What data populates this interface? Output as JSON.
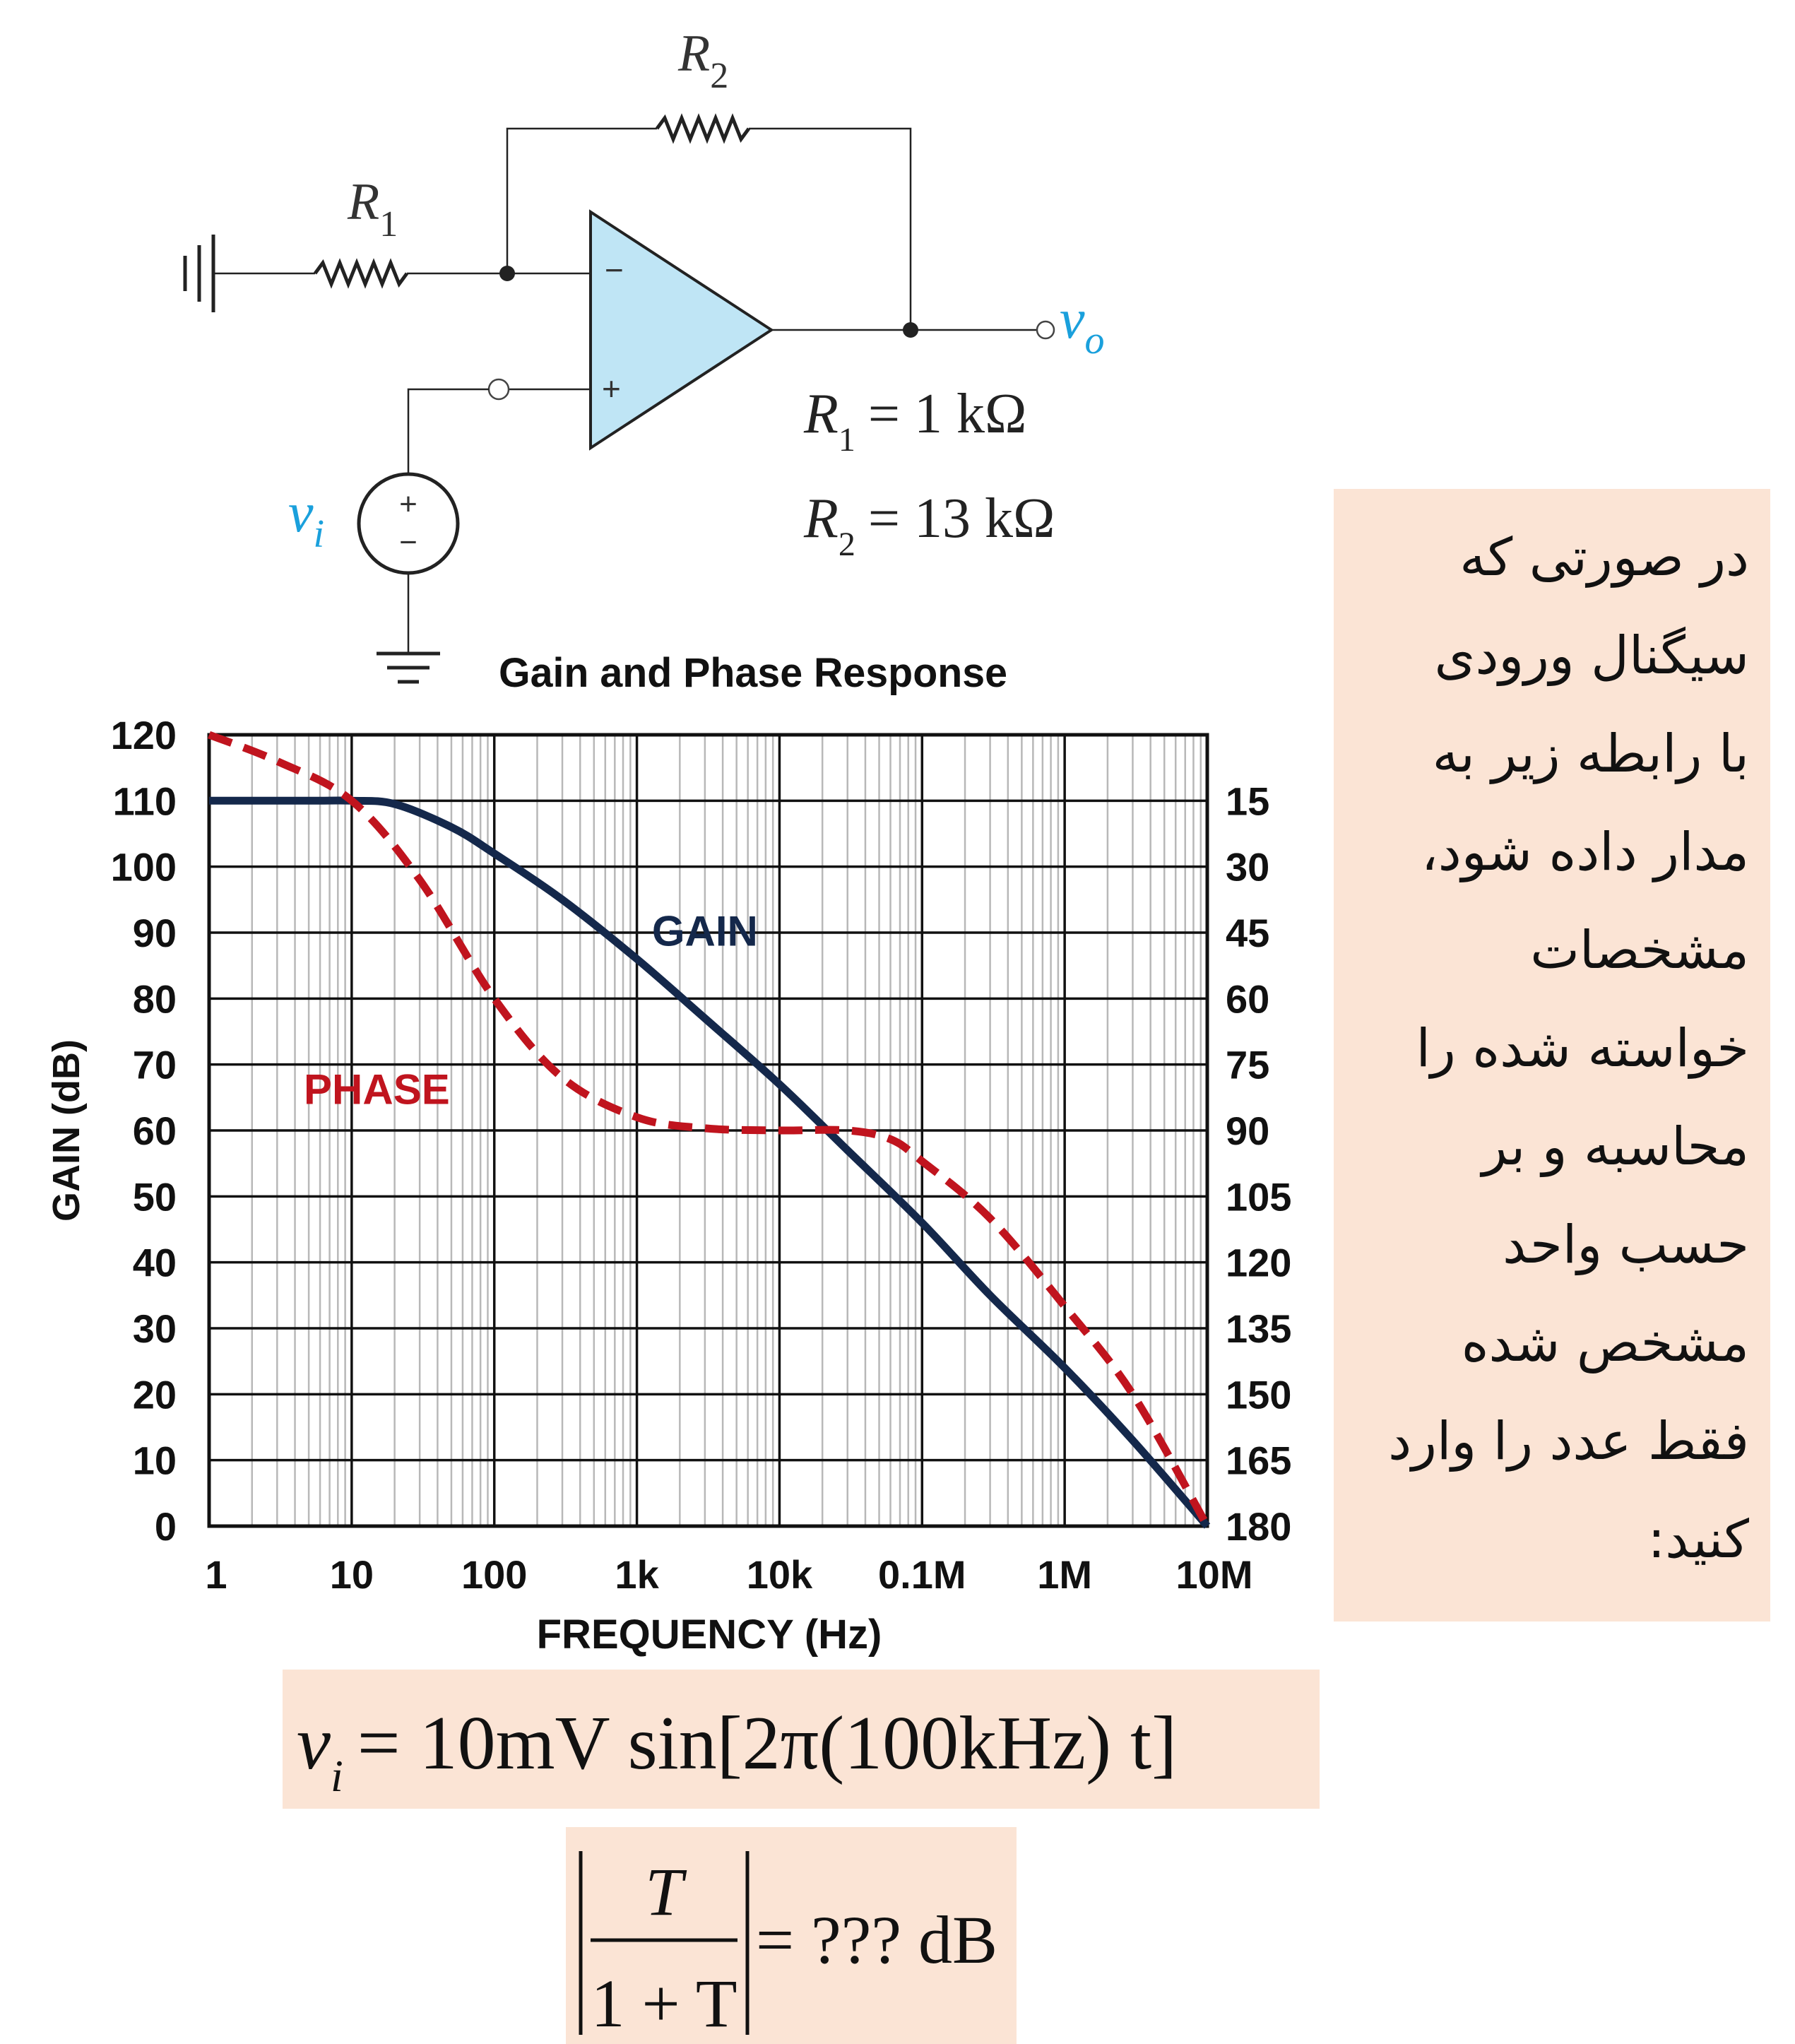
{
  "circuit": {
    "r1_label": "R",
    "r1_sub": "1",
    "r2_label": "R",
    "r2_sub": "2",
    "minus_sign": "−",
    "plus_sign": "+",
    "vo_label": "v",
    "vo_sub": "o",
    "vi_label": "v",
    "vi_sub": "i",
    "source_plus": "+",
    "source_minus": "−",
    "r1_value_lhs": "R",
    "r1_value_sub": "1",
    "r1_value_rhs": "= 1 kΩ",
    "r2_value_lhs": "R",
    "r2_value_sub": "2",
    "r2_value_rhs": "= 13 kΩ",
    "accent_color": "#1aa0dc",
    "opamp_fill": "#bfe5f5"
  },
  "chart_data": {
    "type": "line",
    "title": "Gain and Phase Response",
    "xlabel": "FREQUENCY (Hz)",
    "ylabel": "GAIN (dB)",
    "x_scale": "log",
    "xlim": [
      1,
      10000000
    ],
    "ylim": [
      0,
      120
    ],
    "y2lim": [
      0,
      180
    ],
    "y2_inverted": true,
    "grid": true,
    "x_ticks": [
      {
        "value": 1,
        "label": "1"
      },
      {
        "value": 10,
        "label": "10"
      },
      {
        "value": 100,
        "label": "100"
      },
      {
        "value": 1000,
        "label": "1k"
      },
      {
        "value": 10000,
        "label": "10k"
      },
      {
        "value": 100000,
        "label": "0.1M"
      },
      {
        "value": 1000000,
        "label": "1M"
      },
      {
        "value": 10000000,
        "label": "10M"
      }
    ],
    "y_ticks": [
      "0",
      "10",
      "20",
      "30",
      "40",
      "50",
      "60",
      "70",
      "80",
      "90",
      "100",
      "110",
      "120"
    ],
    "y2_ticks": [
      "15",
      "30",
      "45",
      "60",
      "75",
      "90",
      "105",
      "120",
      "135",
      "150",
      "165",
      "180"
    ],
    "series": [
      {
        "name": "GAIN",
        "color": "#14284b",
        "axis": "left",
        "x": [
          1,
          5,
          10,
          20,
          50,
          100,
          300,
          1000,
          3000,
          10000,
          30000,
          100000,
          300000,
          1000000,
          3000000,
          10000000
        ],
        "y": [
          110,
          110,
          110,
          109.5,
          106,
          102,
          95,
          86,
          77,
          67,
          57,
          46,
          35,
          24,
          13,
          0
        ]
      },
      {
        "name": "PHASE",
        "color": "#c0141e",
        "axis": "right",
        "dashed": true,
        "x": [
          1,
          3,
          10,
          30,
          100,
          300,
          1000,
          3000,
          10000,
          30000,
          60000,
          100000,
          300000,
          1000000,
          3000000,
          10000000
        ],
        "y": [
          0,
          6,
          15,
          33,
          60,
          78,
          87,
          89.5,
          90,
          90,
          92,
          97,
          110,
          130,
          150,
          180
        ]
      }
    ],
    "annotations": [
      {
        "text": "GAIN",
        "x": 3000,
        "y": 88
      },
      {
        "text": "PHASE",
        "x": 15,
        "y": 64
      }
    ]
  },
  "question": {
    "lines": [
      "در صورتی که",
      "سیگنال ورودی",
      "با رابطه زیر به",
      "مدار داده شود،",
      "مشخصات",
      "خواسته شده را",
      "محاسبه و بر",
      "حسب واحد",
      "مشخص شده",
      "فقط عدد را وارد",
      "کنید:"
    ]
  },
  "equation1": {
    "lhs": "v",
    "lhs_sub": "i",
    "rhs": "= 10mV sin[2π(100kHz) t]"
  },
  "equation2": {
    "numerator": "T",
    "denominator": "1 + T",
    "rhs": "= ??? dB"
  }
}
